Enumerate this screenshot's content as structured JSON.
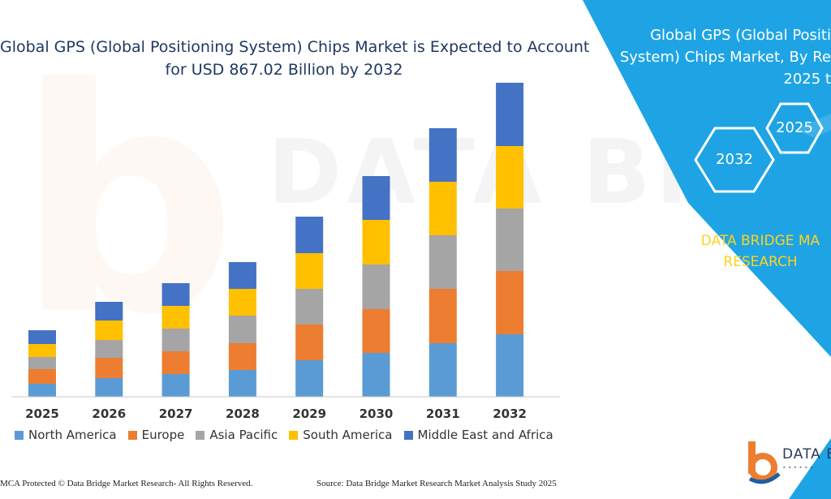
{
  "title": {
    "line1": "Global GPS (Global Positioning System) Chips Market is Expected to Account",
    "line2": "for USD 867.02 Billion by 2032"
  },
  "watermark": "DATA BRIDGE",
  "chart_data": {
    "type": "bar",
    "stacked": true,
    "categories": [
      "2025",
      "2026",
      "2027",
      "2028",
      "2029",
      "2030",
      "2031",
      "2032"
    ],
    "series": [
      {
        "name": "North America",
        "color": "#5b9bd5",
        "values": [
          16,
          23,
          28,
          33,
          45,
          54,
          66,
          77
        ]
      },
      {
        "name": "Europe",
        "color": "#ed7d31",
        "values": [
          18,
          25,
          28,
          33,
          44,
          54,
          67,
          78
        ]
      },
      {
        "name": "Asia Pacific",
        "color": "#a5a5a5",
        "values": [
          15,
          22,
          28,
          34,
          44,
          55,
          66,
          77
        ]
      },
      {
        "name": "South America",
        "color": "#ffc000",
        "values": [
          16,
          24,
          28,
          33,
          44,
          55,
          66,
          77
        ]
      },
      {
        "name": "Middle East and Africa",
        "color": "#4472c4",
        "values": [
          17,
          23,
          28,
          33,
          45,
          54,
          66,
          78
        ]
      }
    ],
    "ylim": [
      0,
      400
    ],
    "grid": false,
    "legend": "bottom",
    "xlabel": "",
    "ylabel": ""
  },
  "footer": {
    "copyright": "MCA Protected © Data Bridge Market Research-  All Rights Reserved.",
    "source": "Source: Data Bridge Market Research  Market Analysis Study 2025"
  },
  "panel": {
    "bg_color": "#1ea4e4",
    "title_line1": "Global GPS (Global Positi",
    "title_line2": "System) Chips Market, By Re",
    "title_line3": "2025 t",
    "hex_2025": "2025",
    "hex_2032": "2032",
    "brand_line1": "DATA BRIDGE MA",
    "brand_line2": "RESEARCH"
  },
  "logo": {
    "text": "DATA B",
    "icon": "data-bridge-b-logo-icon"
  }
}
